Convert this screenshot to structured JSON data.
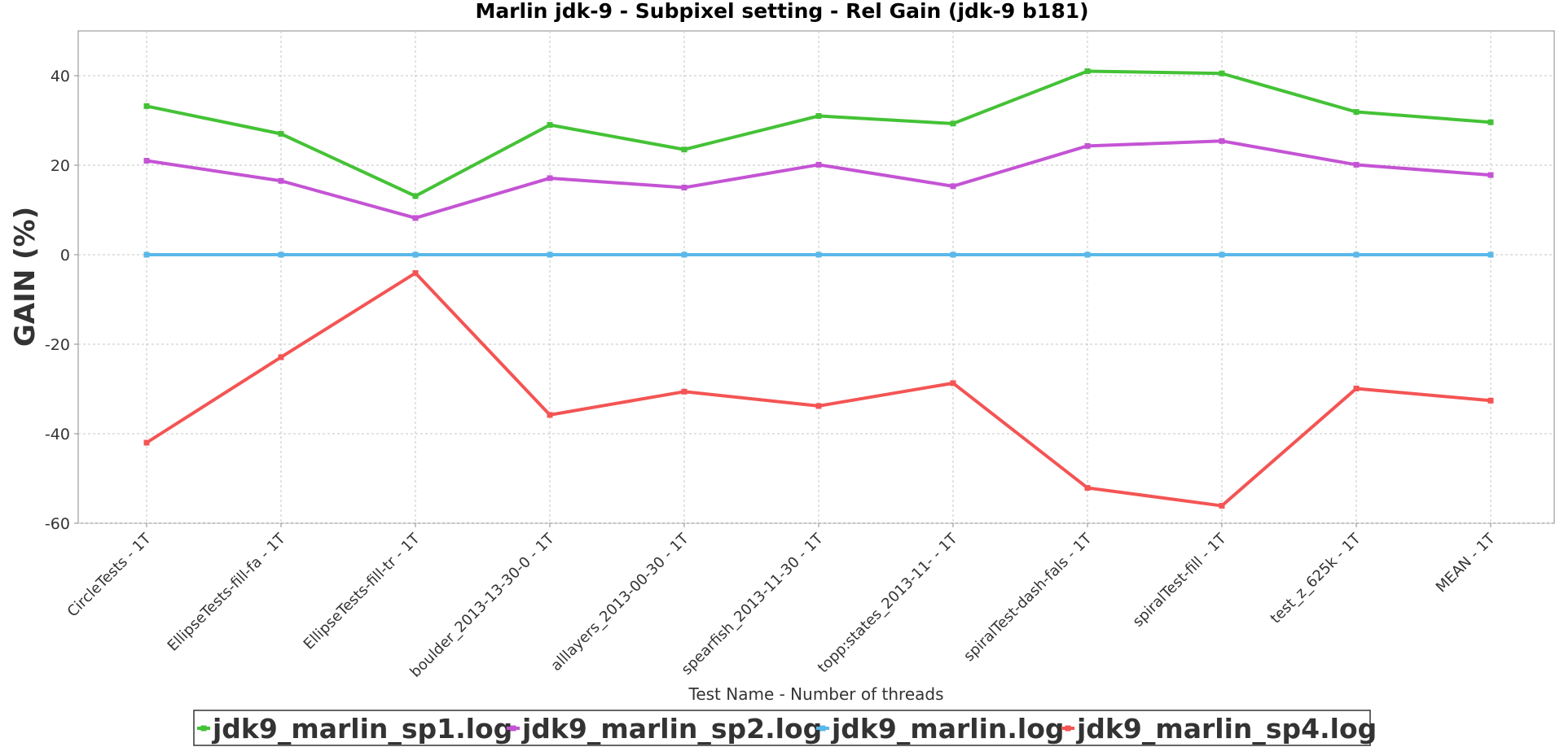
{
  "chart_data": {
    "type": "line",
    "title": "Marlin jdk-9 - Subpixel setting - Rel Gain (jdk-9 b181)",
    "xlabel": "Test Name - Number of threads",
    "ylabel": "GAIN (%)",
    "ylim": [
      -60,
      50
    ],
    "yticks": [
      -60,
      -40,
      -20,
      0,
      20,
      40
    ],
    "grid": true,
    "legend_position": "bottom",
    "categories": [
      "CircleTests - 1T",
      "EllipseTests-fill-fa - 1T",
      "EllipseTests-fill-tr - 1T",
      "boulder_2013-13-30-0 - 1T",
      "alllayers_2013-00-30 - 1T",
      "spearfish_2013-11-30 - 1T",
      "topp:states_2013-11- - 1T",
      "spiralTest-dash-fals - 1T",
      "spiralTest-fill - 1T",
      "test_z_625k - 1T",
      "MEAN - 1T"
    ],
    "series": [
      {
        "name": "jdk9_marlin_sp1.log",
        "color": "#44c236",
        "values": [
          33.2,
          27.0,
          13.1,
          29.0,
          23.5,
          31.0,
          29.3,
          41.0,
          40.5,
          31.9,
          29.6
        ]
      },
      {
        "name": "jdk9_marlin_sp2.log",
        "color": "#c454d4",
        "values": [
          21.0,
          16.5,
          8.2,
          17.1,
          15.0,
          20.1,
          15.3,
          24.3,
          25.4,
          20.1,
          17.8
        ]
      },
      {
        "name": "jdk9_marlin.log",
        "color": "#5ab8ea",
        "values": [
          0,
          0,
          0,
          0,
          0,
          0,
          0,
          0,
          0,
          0,
          0
        ]
      },
      {
        "name": "jdk9_marlin_sp4.log",
        "color": "#f45454",
        "values": [
          -42.0,
          -22.9,
          -4.1,
          -35.8,
          -30.6,
          -33.8,
          -28.7,
          -52.1,
          -56.1,
          -29.9,
          -32.6
        ]
      }
    ]
  }
}
